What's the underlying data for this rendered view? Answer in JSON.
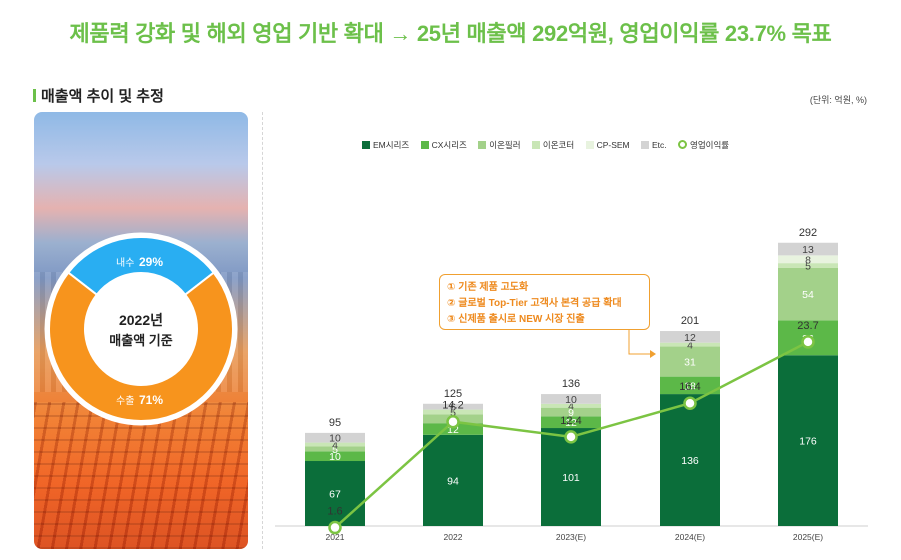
{
  "headline": "제품력 강화 및 해외 영업 기반 확대 → 25년 매출액 292억원, 영업이익률 23.7% 목표",
  "section_title": "매출액 추이 및 추정",
  "unit_note": "(단위: 억원, %)",
  "donut": {
    "center_line1": "2022년",
    "center_line2": "매출액 기준",
    "domestic_label": "내수",
    "domestic_value": "29%",
    "domestic_share": 29,
    "export_label": "수출",
    "export_value": "71%",
    "export_share": 71,
    "colors": {
      "domestic": "#29aef2",
      "export": "#f7941d",
      "inner": "#ffffff"
    }
  },
  "callout": {
    "lines": [
      "① 기존 제품 고도화",
      "② 글로벌 Top-Tier 고객사 본격 공급 확대",
      "③ 신제품 출시로 NEW 시장 진출"
    ],
    "color": "#ee8a1e"
  },
  "chart_data": {
    "type": "bar",
    "stacked": true,
    "categories": [
      "2021",
      "2022",
      "2023(E)",
      "2024(E)",
      "2025(E)"
    ],
    "series": [
      {
        "name": "EM시리즈",
        "color": "#0b6e3a",
        "values": [
          67,
          94,
          101,
          136,
          176
        ]
      },
      {
        "name": "CX시리즈",
        "color": "#5cb848",
        "values": [
          10,
          12,
          12,
          18,
          36
        ]
      },
      {
        "name": "이온필러",
        "color": "#a3d18a",
        "values": [
          5,
          9,
          9,
          31,
          54
        ]
      },
      {
        "name": "이온코터",
        "color": "#c9e6b6",
        "values": [
          4,
          5,
          4,
          4,
          5
        ]
      },
      {
        "name": "CP-SEM",
        "color": "#e8f3df",
        "values": [
          null,
          null,
          null,
          null,
          8
        ]
      },
      {
        "name": "Etc.",
        "color": "#d3d3d3",
        "values": [
          10,
          6,
          10,
          12,
          13
        ]
      }
    ],
    "totals": [
      95,
      125,
      136,
      201,
      292
    ],
    "line": {
      "name": "영업이익률",
      "color": "#7cc443",
      "values": [
        1.6,
        14.2,
        12.4,
        16.4,
        23.7
      ]
    },
    "bar_ylim": [
      0,
      300
    ],
    "line_ylim": [
      0,
      25
    ],
    "xlabel": "",
    "ylabel": "",
    "legend_position": "top"
  }
}
